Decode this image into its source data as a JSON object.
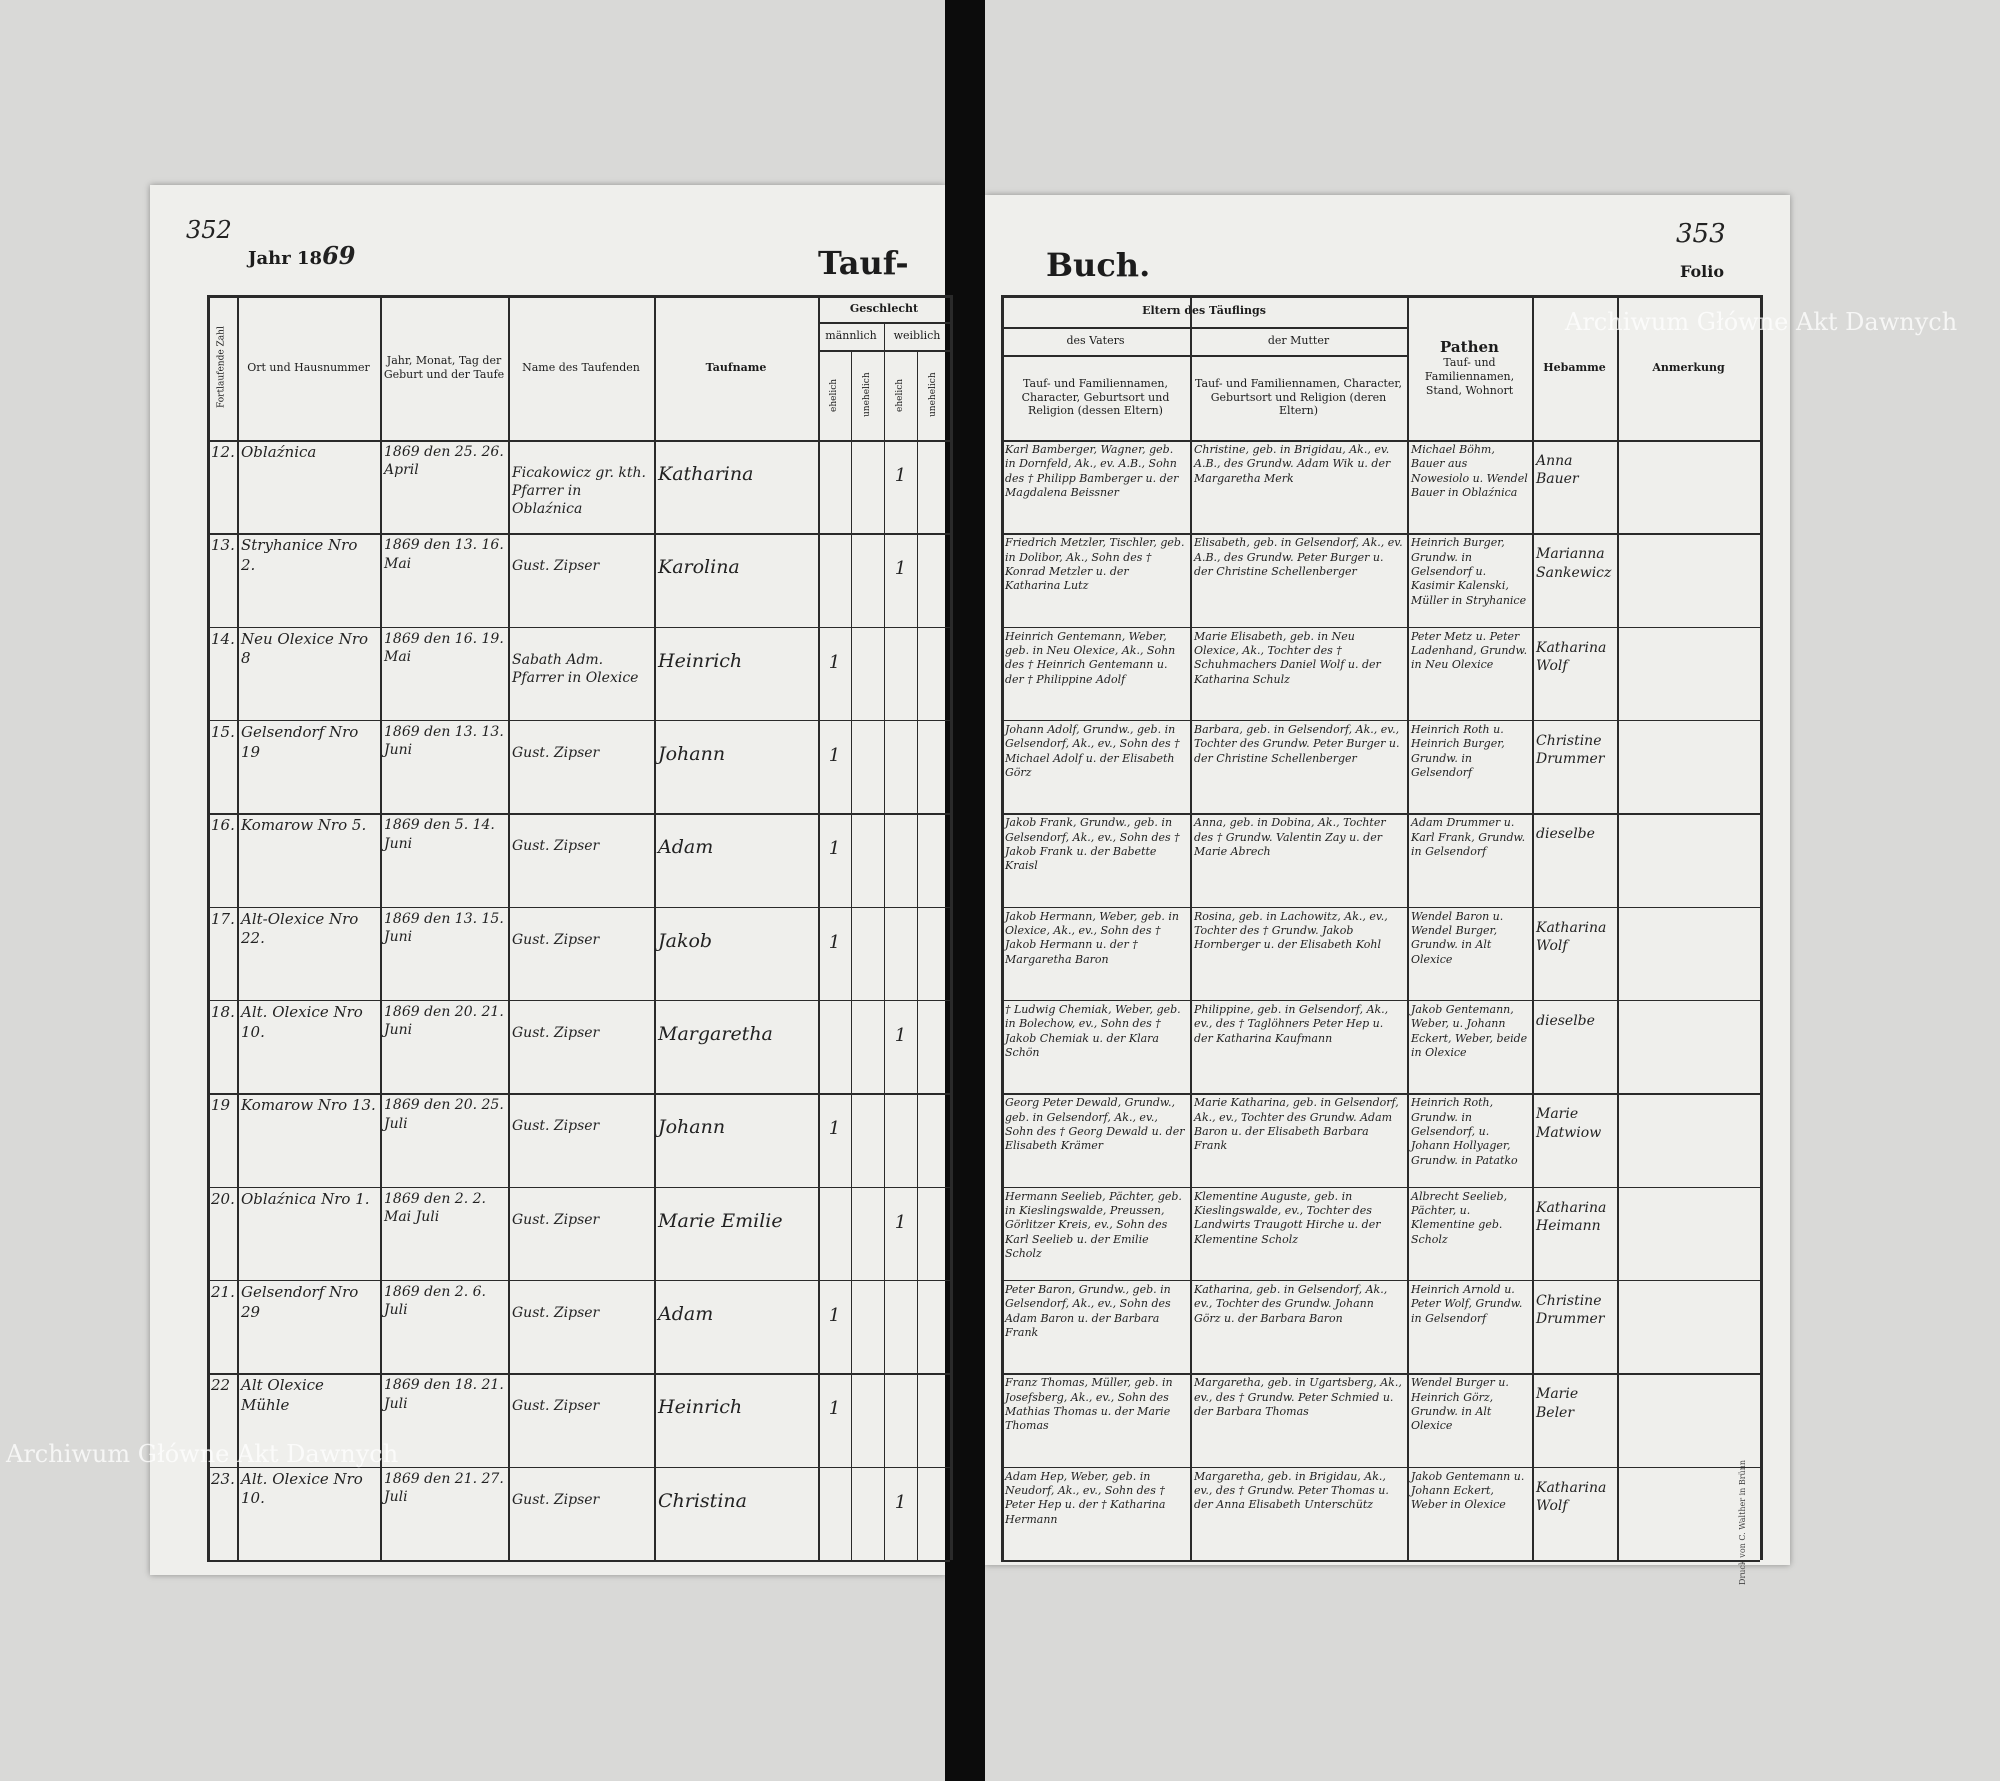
{
  "header": {
    "page_left": "352",
    "year_label": "Jahr 18",
    "year": "69",
    "title_left": "Tauf-",
    "title_right": "Buch.",
    "page_right": "353",
    "folio": "Folio",
    "watermark": "Archiwum Główne Akt Dawnych",
    "printer": "Druck von C. Walther in Brünn"
  },
  "columns": {
    "number": "Fortlaufende Zahl",
    "place": "Ort und Hausnummer",
    "date": "Jahr, Monat, Tag der Geburt und der Taufe",
    "baptizer": "Name des Taufenden",
    "name": "Taufname",
    "sex": "Geschlecht",
    "male": "männlich",
    "female": "weiblich",
    "sex_sub": [
      "ehelich",
      "unehelich",
      "ehelich",
      "unehelich"
    ],
    "parents": "Eltern des Täuflings",
    "father": "des Vaters",
    "mother": "der Mutter",
    "father_detail": "Tauf- und Familiennamen, Character, Geburtsort und Religion (dessen Eltern)",
    "mother_detail": "Tauf- und Familiennamen, Character, Geburtsort und Religion (deren Eltern)",
    "godparents": "Pathen",
    "godparents_detail": "Tauf- und Familiennamen, Stand, Wohnort",
    "midwife": "Hebamme",
    "remark": "Anmerkung"
  },
  "rows": [
    {
      "no": "12.",
      "place": "Oblaźnica",
      "date": "1869 den 25. 26. April",
      "baptizer": "Ficakowicz gr. kth. Pfarrer in Oblaźnica",
      "name": "Katharina",
      "female_legit": "1",
      "father": "Karl Bamberger, Wagner, geb. in Dornfeld, Ak., ev. A.B., Sohn des † Philipp Bamberger u. der Magdalena Beissner",
      "mother": "Christine, geb. in Brigidau, Ak., ev. A.B., des Grundw. Adam Wik u. der Margaretha Merk",
      "godparents": "Michael Böhm, Bauer aus Nowesiolo u. Wendel Bauer in Oblaźnica",
      "midwife": "Anna Bauer"
    },
    {
      "no": "13.",
      "place": "Stryhanice Nro 2.",
      "date": "1869 den 13. 16. Mai",
      "baptizer": "Gust. Zipser",
      "name": "Karolina",
      "female_legit": "1",
      "father": "Friedrich Metzler, Tischler, geb. in Dolibor, Ak., Sohn des † Konrad Metzler u. der Katharina Lutz",
      "mother": "Elisabeth, geb. in Gelsendorf, Ak., ev. A.B., des Grundw. Peter Burger u. der Christine Schellenberger",
      "godparents": "Heinrich Burger, Grundw. in Gelsendorf u. Kasimir Kalenski, Müller in Stryhanice",
      "midwife": "Marianna Sankewicz"
    },
    {
      "no": "14.",
      "place": "Neu Olexice Nro 8",
      "date": "1869 den 16. 19. Mai",
      "baptizer": "Sabath Adm. Pfarrer in Olexice",
      "name": "Heinrich",
      "male_legit": "1",
      "father": "Heinrich Gentemann, Weber, geb. in Neu Olexice, Ak., Sohn des † Heinrich Gentemann u. der † Philippine Adolf",
      "mother": "Marie Elisabeth, geb. in Neu Olexice, Ak., Tochter des † Schuhmachers Daniel Wolf u. der Katharina Schulz",
      "godparents": "Peter Metz u. Peter Ladenhand, Grundw. in Neu Olexice",
      "midwife": "Katharina Wolf"
    },
    {
      "no": "15.",
      "place": "Gelsendorf Nro 19",
      "date": "1869 den 13. 13. Juni",
      "baptizer": "Gust. Zipser",
      "name": "Johann",
      "male_legit": "1",
      "father": "Johann Adolf, Grundw., geb. in Gelsendorf, Ak., ev., Sohn des † Michael Adolf u. der Elisabeth Görz",
      "mother": "Barbara, geb. in Gelsendorf, Ak., ev., Tochter des Grundw. Peter Burger u. der Christine Schellenberger",
      "godparents": "Heinrich Roth u. Heinrich Burger, Grundw. in Gelsendorf",
      "midwife": "Christine Drummer"
    },
    {
      "no": "16.",
      "place": "Komarow Nro 5.",
      "date": "1869 den 5. 14. Juni",
      "baptizer": "Gust. Zipser",
      "name": "Adam",
      "male_legit": "1",
      "father": "Jakob Frank, Grundw., geb. in Gelsendorf, Ak., ev., Sohn des † Jakob Frank u. der Babette Kraisl",
      "mother": "Anna, geb. in Dobina, Ak., Tochter des † Grundw. Valentin Zay u. der Marie Abrech",
      "godparents": "Adam Drummer u. Karl Frank, Grundw. in Gelsendorf",
      "midwife": "dieselbe"
    },
    {
      "no": "17.",
      "place": "Alt-Olexice Nro 22.",
      "date": "1869 den 13. 15. Juni",
      "baptizer": "Gust. Zipser",
      "name": "Jakob",
      "male_legit": "1",
      "father": "Jakob Hermann, Weber, geb. in Olexice, Ak., ev., Sohn des † Jakob Hermann u. der † Margaretha Baron",
      "mother": "Rosina, geb. in Lachowitz, Ak., ev., Tochter des † Grundw. Jakob Hornberger u. der Elisabeth Kohl",
      "godparents": "Wendel Baron u. Wendel Burger, Grundw. in Alt Olexice",
      "midwife": "Katharina Wolf"
    },
    {
      "no": "18.",
      "place": "Alt. Olexice Nro 10.",
      "date": "1869 den 20. 21. Juni",
      "baptizer": "Gust. Zipser",
      "name": "Margaretha",
      "female_legit": "1",
      "father": "† Ludwig Chemiak, Weber, geb. in Bolechow, ev., Sohn des † Jakob Chemiak u. der Klara Schön",
      "mother": "Philippine, geb. in Gelsendorf, Ak., ev., des † Taglöhners Peter Hep u. der Katharina Kaufmann",
      "godparents": "Jakob Gentemann, Weber, u. Johann Eckert, Weber, beide in Olexice",
      "midwife": "dieselbe"
    },
    {
      "no": "19",
      "place": "Komarow Nro 13.",
      "date": "1869 den 20. 25. Juli",
      "baptizer": "Gust. Zipser",
      "name": "Johann",
      "male_legit": "1",
      "father": "Georg Peter Dewald, Grundw., geb. in Gelsendorf, Ak., ev., Sohn des † Georg Dewald u. der Elisabeth Krämer",
      "mother": "Marie Katharina, geb. in Gelsendorf, Ak., ev., Tochter des Grundw. Adam Baron u. der Elisabeth Barbara Frank",
      "godparents": "Heinrich Roth, Grundw. in Gelsendorf, u. Johann Hollyager, Grundw. in Patatko",
      "midwife": "Marie Matwiow"
    },
    {
      "no": "20.",
      "place": "Oblaźnica Nro 1.",
      "date": "1869 den 2. 2. Mai Juli",
      "baptizer": "Gust. Zipser",
      "name": "Marie Emilie",
      "female_legit": "1",
      "father": "Hermann Seelieb, Pächter, geb. in Kieslingswalde, Preussen, Görlitzer Kreis, ev., Sohn des Karl Seelieb u. der Emilie Scholz",
      "mother": "Klementine Auguste, geb. in Kieslingswalde, ev., Tochter des Landwirts Traugott Hirche u. der Klementine Scholz",
      "godparents": "Albrecht Seelieb, Pächter, u. Klementine geb. Scholz",
      "midwife": "Katharina Heimann"
    },
    {
      "no": "21.",
      "place": "Gelsendorf Nro 29",
      "date": "1869 den 2. 6. Juli",
      "baptizer": "Gust. Zipser",
      "name": "Adam",
      "male_legit": "1",
      "father": "Peter Baron, Grundw., geb. in Gelsendorf, Ak., ev., Sohn des Adam Baron u. der Barbara Frank",
      "mother": "Katharina, geb. in Gelsendorf, Ak., ev., Tochter des Grundw. Johann Görz u. der Barbara Baron",
      "godparents": "Heinrich Arnold u. Peter Wolf, Grundw. in Gelsendorf",
      "midwife": "Christine Drummer"
    },
    {
      "no": "22",
      "place": "Alt Olexice Mühle",
      "date": "1869 den 18. 21. Juli",
      "baptizer": "Gust. Zipser",
      "name": "Heinrich",
      "male_legit": "1",
      "father": "Franz Thomas, Müller, geb. in Josefsberg, Ak., ev., Sohn des Mathias Thomas u. der Marie Thomas",
      "mother": "Margaretha, geb. in Ugartsberg, Ak., ev., des † Grundw. Peter Schmied u. der Barbara Thomas",
      "godparents": "Wendel Burger u. Heinrich Görz, Grundw. in Alt Olexice",
      "midwife": "Marie Beler"
    },
    {
      "no": "23.",
      "place": "Alt. Olexice Nro 10.",
      "date": "1869 den 21. 27. Juli",
      "baptizer": "Gust. Zipser",
      "name": "Christina",
      "female_legit": "1",
      "father": "Adam Hep, Weber, geb. in Neudorf, Ak., ev., Sohn des † Peter Hep u. der † Katharina Hermann",
      "mother": "Margaretha, geb. in Brigidau, Ak., ev., des † Grundw. Peter Thomas u. der Anna Elisabeth Unterschütz",
      "godparents": "Jakob Gentemann u. Johann Eckert, Weber in Olexice",
      "midwife": "Katharina Wolf"
    }
  ]
}
